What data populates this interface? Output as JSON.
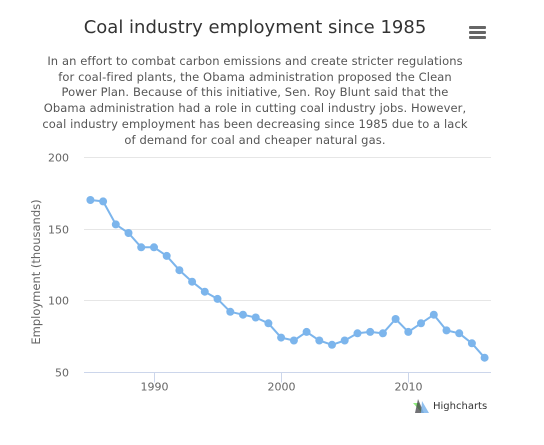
{
  "title": "Coal industry employment since 1985",
  "subtitle": "In an effort to combat carbon emissions and create stricter regulations for coal-fired plants, the Obama administration proposed the Clean Power Plan. Because of this initiative, Sen. Roy Blunt said that the Obama administration had a role in cutting coal industry jobs. However, coal industry employment has been decreasing since 1985 due to a lack of demand for coal and cheaper natural gas.",
  "credits": "Highcharts",
  "menu_icon": "hamburger-menu-icon",
  "colors": {
    "series": "#7cb5ec",
    "grid": "#e6e6e6",
    "axis": "#ccd6eb",
    "text": "#333333",
    "label": "#666666"
  },
  "chart_data": {
    "type": "line",
    "title": "Coal industry employment since 1985",
    "subtitle": "In an effort to combat carbon emissions and create stricter regulations for coal-fired plants, the Obama administration proposed the Clean Power Plan. Because of this initiative, Sen. Roy Blunt said that the Obama administration had a role in cutting coal industry jobs. However, coal industry employment has been decreasing since 1985 due to a lack of demand for coal and cheaper natural gas.",
    "xlabel": "",
    "ylabel": "Employment (thousands)",
    "xlim": [
      1984.5,
      2016.5
    ],
    "ylim": [
      50,
      200
    ],
    "x_ticks": [
      1990,
      2000,
      2010
    ],
    "x_tick_labels": [
      "1990",
      "2000",
      "2010"
    ],
    "y_ticks": [
      50,
      100,
      150,
      200
    ],
    "y_tick_labels": [
      "50",
      "100",
      "150",
      "200"
    ],
    "grid": true,
    "legend": false,
    "x": [
      1985,
      1986,
      1987,
      1988,
      1989,
      1990,
      1991,
      1992,
      1993,
      1994,
      1995,
      1996,
      1997,
      1998,
      1999,
      2000,
      2001,
      2002,
      2003,
      2004,
      2005,
      2006,
      2007,
      2008,
      2009,
      2010,
      2011,
      2012,
      2013,
      2014,
      2015,
      2016
    ],
    "series": [
      {
        "values": [
          170,
          169,
          153,
          147,
          137,
          137,
          131,
          121,
          113,
          106,
          101,
          92,
          90,
          88,
          84,
          74,
          72,
          78,
          72,
          69,
          72,
          77,
          78,
          77,
          87,
          78,
          84,
          90,
          79,
          77,
          70,
          60
        ]
      }
    ]
  }
}
